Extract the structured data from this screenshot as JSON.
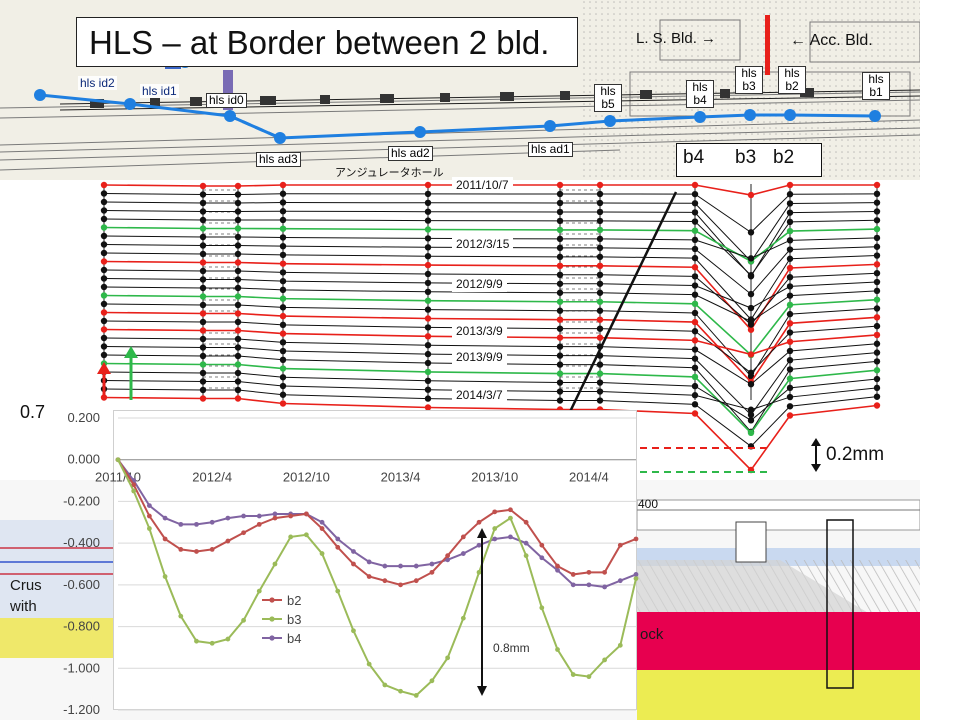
{
  "slide": {
    "title": "HLS – at Border between 2 bld.",
    "ls_bld_label": "L. S. Bld. →",
    "acc_bld_label": "← Acc. Bld.",
    "right_scale_label": "0.2mm",
    "left_scale_label": "0.7",
    "crust_label_1": "Crus",
    "crust_label_2": "with",
    "rock_label": "ock",
    "ruler_label": "400",
    "hall_label": "アンジュレータホール",
    "hls_id_labels": [
      "hls id2",
      "hls id1"
    ],
    "hls_top_labels": [
      "hls id0",
      "hls b5",
      "hls b4",
      "hls b3",
      "hls b2",
      "hls b1"
    ],
    "hls_bottom_labels": [
      "hls ad3",
      "hls ad2",
      "hls ad1"
    ],
    "box_labels": [
      "b4",
      "b3",
      "b2"
    ]
  },
  "profile_dates": [
    "2011/10/7",
    "2012/3/15",
    "2012/9/9",
    "2013/3/9",
    "2013/9/9",
    "2014/3/7"
  ],
  "colors": {
    "red": "#e8201a",
    "green": "#2eb84a",
    "black": "#111111",
    "blue": "#1f7fe0",
    "b2": "#c0504d",
    "b3": "#9bbb59",
    "b4": "#8064a2"
  },
  "chart_data": {
    "type": "line",
    "x": [
      "2011/10",
      "2011/11",
      "2011/12",
      "2012/1",
      "2012/2",
      "2012/3",
      "2012/4",
      "2012/5",
      "2012/6",
      "2012/7",
      "2012/8",
      "2012/9",
      "2012/10",
      "2012/11",
      "2012/12",
      "2013/1",
      "2013/2",
      "2013/3",
      "2013/4",
      "2013/5",
      "2013/6",
      "2013/7",
      "2013/8",
      "2013/9",
      "2013/10",
      "2013/11",
      "2013/12",
      "2014/1",
      "2014/2",
      "2014/3",
      "2014/4",
      "2014/5",
      "2014/6",
      "2014/7"
    ],
    "x_ticks": [
      "2011/10",
      "2012/4",
      "2012/10",
      "2013/4",
      "2013/10",
      "2014/4"
    ],
    "y_ticks": [
      "0.200",
      "0.000",
      "-0.200",
      "-0.400",
      "-0.600",
      "-0.800",
      "-1.000",
      "-1.200"
    ],
    "ylim": [
      -1.2,
      0.2
    ],
    "grid": true,
    "legend": "center",
    "annotation": "0.8mm",
    "series": [
      {
        "name": "b2",
        "values": [
          0.0,
          -0.12,
          -0.27,
          -0.38,
          -0.43,
          -0.44,
          -0.43,
          -0.39,
          -0.35,
          -0.31,
          -0.28,
          -0.27,
          -0.26,
          -0.33,
          -0.42,
          -0.5,
          -0.56,
          -0.58,
          -0.6,
          -0.58,
          -0.54,
          -0.46,
          -0.37,
          -0.3,
          -0.25,
          -0.24,
          -0.3,
          -0.41,
          -0.51,
          -0.55,
          -0.54,
          -0.54,
          -0.41,
          -0.38
        ]
      },
      {
        "name": "b3",
        "values": [
          0.0,
          -0.15,
          -0.33,
          -0.56,
          -0.75,
          -0.87,
          -0.88,
          -0.86,
          -0.77,
          -0.63,
          -0.5,
          -0.37,
          -0.36,
          -0.45,
          -0.63,
          -0.82,
          -0.98,
          -1.08,
          -1.11,
          -1.13,
          -1.06,
          -0.95,
          -0.76,
          -0.54,
          -0.33,
          -0.28,
          -0.46,
          -0.71,
          -0.91,
          -1.03,
          -1.04,
          -0.96,
          -0.89,
          -0.57
        ]
      },
      {
        "name": "b4",
        "values": [
          0.0,
          -0.1,
          -0.22,
          -0.28,
          -0.31,
          -0.31,
          -0.3,
          -0.28,
          -0.27,
          -0.27,
          -0.26,
          -0.26,
          -0.26,
          -0.3,
          -0.38,
          -0.44,
          -0.49,
          -0.51,
          -0.51,
          -0.51,
          -0.5,
          -0.48,
          -0.45,
          -0.41,
          -0.38,
          -0.37,
          -0.4,
          -0.47,
          -0.53,
          -0.6,
          -0.6,
          -0.61,
          -0.58,
          -0.55
        ]
      }
    ]
  }
}
